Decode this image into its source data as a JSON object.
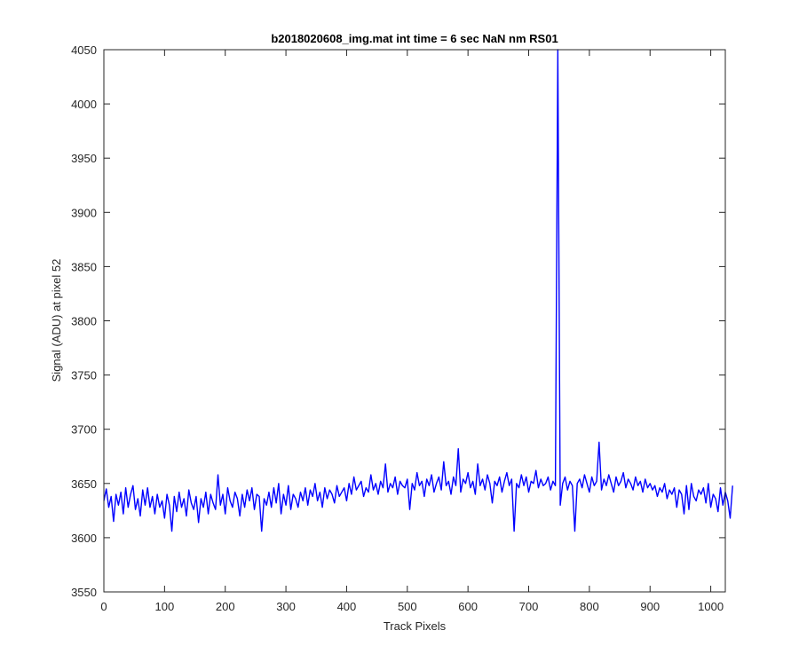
{
  "chart_data": {
    "type": "line",
    "title": "b2018020608_img.mat int time = 6 sec  NaN nm RS01",
    "xlabel": "Track Pixels",
    "ylabel": "Signal (ADU) at pixel 52",
    "xlim": [
      0,
      1024
    ],
    "ylim": [
      3550,
      4050
    ],
    "xticks": [
      0,
      100,
      200,
      300,
      400,
      500,
      600,
      700,
      800,
      900,
      1000
    ],
    "yticks": [
      3550,
      3600,
      3650,
      3700,
      3750,
      3800,
      3850,
      3900,
      3950,
      4000,
      4050
    ],
    "grid": false,
    "series": [
      {
        "color": "#0000ff",
        "x_start": 0,
        "x_step": 4,
        "values": [
          3634,
          3645,
          3628,
          3638,
          3615,
          3640,
          3630,
          3642,
          3622,
          3646,
          3628,
          3640,
          3648,
          3626,
          3636,
          3620,
          3644,
          3630,
          3646,
          3628,
          3638,
          3622,
          3640,
          3628,
          3634,
          3618,
          3640,
          3630,
          3606,
          3638,
          3624,
          3642,
          3628,
          3636,
          3620,
          3644,
          3632,
          3626,
          3638,
          3614,
          3636,
          3628,
          3642,
          3622,
          3640,
          3632,
          3626,
          3658,
          3630,
          3640,
          3622,
          3646,
          3634,
          3628,
          3642,
          3636,
          3620,
          3640,
          3628,
          3644,
          3634,
          3646,
          3626,
          3640,
          3638,
          3606,
          3636,
          3630,
          3642,
          3628,
          3646,
          3632,
          3650,
          3622,
          3640,
          3630,
          3648,
          3626,
          3640,
          3636,
          3628,
          3642,
          3634,
          3646,
          3630,
          3644,
          3638,
          3650,
          3634,
          3642,
          3628,
          3646,
          3636,
          3644,
          3640,
          3632,
          3648,
          3638,
          3642,
          3646,
          3634,
          3650,
          3640,
          3656,
          3644,
          3648,
          3652,
          3638,
          3646,
          3642,
          3658,
          3644,
          3650,
          3640,
          3652,
          3646,
          3668,
          3642,
          3650,
          3646,
          3656,
          3640,
          3652,
          3648,
          3646,
          3654,
          3626,
          3650,
          3644,
          3660,
          3648,
          3652,
          3638,
          3654,
          3648,
          3658,
          3642,
          3650,
          3656,
          3644,
          3670,
          3648,
          3652,
          3640,
          3656,
          3648,
          3682,
          3642,
          3654,
          3650,
          3660,
          3646,
          3652,
          3640,
          3668,
          3648,
          3654,
          3644,
          3658,
          3650,
          3632,
          3652,
          3648,
          3656,
          3642,
          3652,
          3660,
          3648,
          3654,
          3606,
          3650,
          3646,
          3658,
          3648,
          3656,
          3642,
          3652,
          3650,
          3662,
          3646,
          3654,
          3648,
          3650,
          3656,
          3644,
          3652,
          3648,
          4050,
          3630,
          3650,
          3656,
          3644,
          3652,
          3648,
          3606,
          3650,
          3654,
          3646,
          3658,
          3650,
          3642,
          3656,
          3648,
          3652,
          3688,
          3644,
          3654,
          3648,
          3658,
          3650,
          3642,
          3656,
          3648,
          3652,
          3660,
          3646,
          3654,
          3650,
          3644,
          3656,
          3648,
          3652,
          3642,
          3654,
          3646,
          3650,
          3644,
          3648,
          3638,
          3646,
          3642,
          3650,
          3636,
          3644,
          3640,
          3646,
          3628,
          3644,
          3640,
          3622,
          3648,
          3626,
          3650,
          3638,
          3634,
          3644,
          3640,
          3646,
          3632,
          3650,
          3628,
          3640,
          3636,
          3624,
          3646,
          3630,
          3642,
          3634,
          3618,
          3648
        ]
      }
    ]
  }
}
